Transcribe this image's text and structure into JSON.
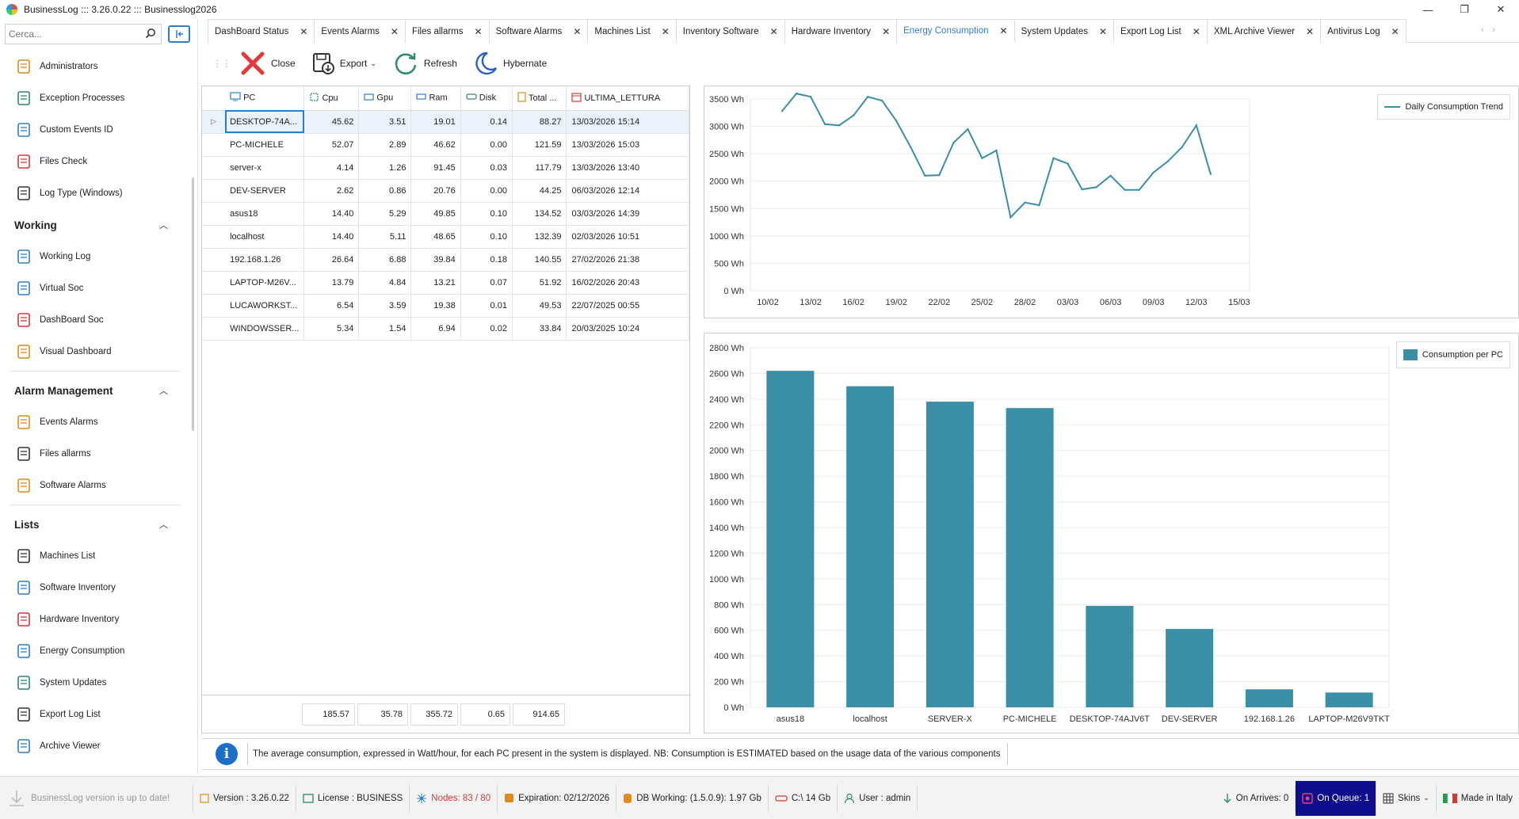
{
  "window": {
    "title": "BusinessLog ::: 3.26.0.22 ::: Businesslog2026",
    "minimize": "—",
    "restore": "❐",
    "close": "✕"
  },
  "sidebar": {
    "search_placeholder": "Cerca...",
    "top_items": [
      {
        "label": "Administrators",
        "icon": "admin-icon"
      },
      {
        "label": "Exception Processes",
        "icon": "checklist-icon"
      },
      {
        "label": "Custom Events ID",
        "icon": "calendar-icon"
      },
      {
        "label": "Files Check",
        "icon": "file-check-icon"
      },
      {
        "label": "Log Type (Windows)",
        "icon": "log-type-icon"
      }
    ],
    "sections": [
      {
        "title": "Working",
        "items": [
          {
            "label": "Working Log",
            "icon": "clipboard-icon"
          },
          {
            "label": "Virtual Soc",
            "icon": "eye-icon"
          },
          {
            "label": "DashBoard Soc",
            "icon": "dashboard-icon"
          },
          {
            "label": "Visual Dashboard",
            "icon": "grid-icon"
          }
        ]
      },
      {
        "title": "Alarm Management",
        "items": [
          {
            "label": "Events Alarms",
            "icon": "wifi-alarm-icon"
          },
          {
            "label": "Files allarms",
            "icon": "file-lock-icon"
          },
          {
            "label": "Software Alarms",
            "icon": "warning-icon"
          }
        ]
      },
      {
        "title": "Lists",
        "items": [
          {
            "label": "Machines List",
            "icon": "machines-icon"
          },
          {
            "label": "Software Inventory",
            "icon": "software-icon"
          },
          {
            "label": "Hardware Inventory",
            "icon": "hardware-icon"
          },
          {
            "label": "Energy Consumption",
            "icon": "bulb-icon"
          },
          {
            "label": "System Updates",
            "icon": "update-icon"
          },
          {
            "label": "Export Log List",
            "icon": "export-icon"
          },
          {
            "label": "Archive Viewer",
            "icon": "archive-icon"
          }
        ]
      }
    ]
  },
  "tabs": [
    {
      "label": "DashBoard Status",
      "active": false
    },
    {
      "label": "Events Alarms",
      "active": false
    },
    {
      "label": "Files allarms",
      "active": false
    },
    {
      "label": "Software Alarms",
      "active": false
    },
    {
      "label": "Machines List",
      "active": false
    },
    {
      "label": "Inventory Software",
      "active": false
    },
    {
      "label": "Hardware Inventory",
      "active": false
    },
    {
      "label": "Energy Consumption",
      "active": true
    },
    {
      "label": "System Updates",
      "active": false
    },
    {
      "label": "Export Log List",
      "active": false
    },
    {
      "label": "XML Archive Viewer",
      "active": false
    },
    {
      "label": "Antivirus Log",
      "active": false
    }
  ],
  "toolbar": {
    "close": "Close",
    "export": "Export",
    "refresh": "Refresh",
    "hybernate": "Hybernate"
  },
  "grid": {
    "columns": [
      "PC",
      "Cpu",
      "Gpu",
      "Ram",
      "Disk",
      "Total ...",
      "ULTIMA_LETTURA"
    ],
    "rows": [
      [
        "DESKTOP-74A...",
        "45.62",
        "3.51",
        "19.01",
        "0.14",
        "88.27",
        "13/03/2026 15:14"
      ],
      [
        "PC-MICHELE",
        "52.07",
        "2.89",
        "46.62",
        "0.00",
        "121.59",
        "13/03/2026 15:03"
      ],
      [
        "server-x",
        "4.14",
        "1.26",
        "91.45",
        "0.03",
        "117.79",
        "13/03/2026 13:40"
      ],
      [
        "DEV-SERVER",
        "2.62",
        "0.86",
        "20.76",
        "0.00",
        "44.25",
        "06/03/2026 12:14"
      ],
      [
        "asus18",
        "14.40",
        "5.29",
        "49.85",
        "0.10",
        "134.52",
        "03/03/2026 14:39"
      ],
      [
        "localhost",
        "14.40",
        "5.11",
        "48.65",
        "0.10",
        "132.39",
        "02/03/2026 10:51"
      ],
      [
        "192.168.1.26",
        "26.64",
        "6.88",
        "39.84",
        "0.18",
        "140.55",
        "27/02/2026 21:38"
      ],
      [
        "LAPTOP-M26V...",
        "13.79",
        "4.84",
        "13.21",
        "0.07",
        "51.92",
        "16/02/2026 20:43"
      ],
      [
        "LUCAWORKST...",
        "6.54",
        "3.59",
        "19.38",
        "0.01",
        "49.53",
        "22/07/2025 00:55"
      ],
      [
        "WINDOWSSER...",
        "5.34",
        "1.54",
        "6.94",
        "0.02",
        "33.84",
        "20/03/2025 10:24"
      ]
    ],
    "totals": [
      "185.57",
      "35.78",
      "355.72",
      "0.65",
      "914.65"
    ]
  },
  "chart_data": [
    {
      "type": "line",
      "legend": "Daily Consumption Trend",
      "legend_position": "top-right",
      "ylim": [
        0,
        3500
      ],
      "yticks": [
        0,
        500,
        1000,
        1500,
        2000,
        2500,
        3000,
        3500
      ],
      "ytick_labels": [
        "0 Wh",
        "500 Wh",
        "1000 Wh",
        "1500 Wh",
        "2000 Wh",
        "2500 Wh",
        "3000 Wh",
        "3500 Wh"
      ],
      "xtick_labels": [
        "10/02",
        "13/02",
        "16/02",
        "19/02",
        "22/02",
        "25/02",
        "28/02",
        "03/03",
        "06/03",
        "09/03",
        "12/03",
        "15/03"
      ],
      "x": [
        "11/02",
        "12/02",
        "13/02",
        "14/02",
        "15/02",
        "16/02",
        "17/02",
        "18/02",
        "19/02",
        "20/02",
        "21/02",
        "22/02",
        "23/02",
        "24/02",
        "25/02",
        "26/02",
        "27/02",
        "28/02",
        "01/03",
        "02/03",
        "03/03",
        "04/03",
        "05/03",
        "06/03",
        "07/03",
        "08/03",
        "09/03",
        "10/03",
        "11/03",
        "12/03",
        "13/03"
      ],
      "values": [
        3280,
        3600,
        3540,
        3040,
        3020,
        3200,
        3540,
        3470,
        3100,
        2620,
        2100,
        2110,
        2700,
        2950,
        2420,
        2560,
        1340,
        1610,
        1560,
        2420,
        2320,
        1850,
        1890,
        2100,
        1840,
        1840,
        2160,
        2360,
        2620,
        3020,
        2130
      ],
      "grid": true
    },
    {
      "type": "bar",
      "legend": "Consumption per PC",
      "legend_position": "top-right",
      "ylim": [
        0,
        2800
      ],
      "yticks": [
        0,
        200,
        400,
        600,
        800,
        1000,
        1200,
        1400,
        1600,
        1800,
        2000,
        2200,
        2400,
        2600,
        2800
      ],
      "ytick_labels": [
        "0 Wh",
        "200 Wh",
        "400 Wh",
        "600 Wh",
        "800 Wh",
        "1000 Wh",
        "1200 Wh",
        "1400 Wh",
        "1600 Wh",
        "1800 Wh",
        "2000 Wh",
        "2200 Wh",
        "2400 Wh",
        "2600 Wh",
        "2800 Wh"
      ],
      "categories": [
        "asus18",
        "localhost",
        "SERVER-X",
        "PC-MICHELE",
        "DESKTOP-74AJV6T",
        "DEV-SERVER",
        "192.168.1.26",
        "LAPTOP-M26V9TKT"
      ],
      "values": [
        2620,
        2500,
        2380,
        2330,
        790,
        610,
        140,
        115
      ],
      "grid": true
    }
  ],
  "info": {
    "text": "The average consumption, expressed in Watt/hour, for each PC present in the system is displayed. NB: Consumption is ESTIMATED based on the usage data of the various components"
  },
  "status": {
    "update": "BusinessLog version is up to date!",
    "version": "Version : 3.26.0.22",
    "license": "License : BUSINESS",
    "nodes": "Nodes: 83 / 80",
    "expiration": "Expiration: 02/12/2026",
    "db": "DB Working: (1.5.0.9): 1.97 Gb",
    "disk": "C:\\ 14 Gb",
    "user": "User : admin",
    "arrives": "On Arrives: 0",
    "queue": "On Queue: 1",
    "skins": "Skins",
    "made": "Made in Italy"
  },
  "colors": {
    "accent": "#2b7fd3",
    "chart_series": "#3a8fa7",
    "queue_bg": "#0e0e8c",
    "nodes_red": "#d23a3a"
  }
}
